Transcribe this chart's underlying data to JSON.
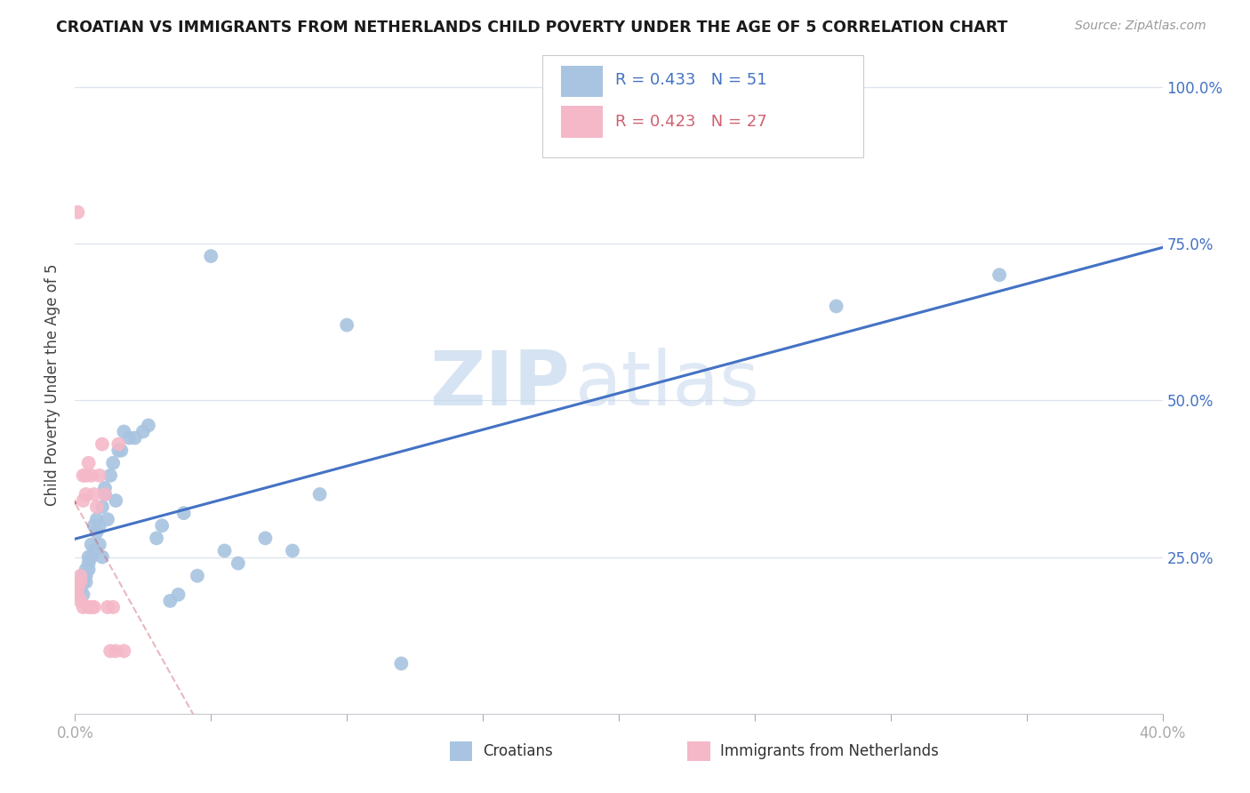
{
  "title": "CROATIAN VS IMMIGRANTS FROM NETHERLANDS CHILD POVERTY UNDER THE AGE OF 5 CORRELATION CHART",
  "source": "Source: ZipAtlas.com",
  "ylabel": "Child Poverty Under the Age of 5",
  "blue_R": 0.433,
  "blue_N": 51,
  "pink_R": 0.423,
  "pink_N": 27,
  "blue_color": "#a8c4e0",
  "blue_line_color": "#4472c4",
  "pink_color": "#f4b8c8",
  "pink_line_color": "#d06070",
  "watermark_zip": "ZIP",
  "watermark_atlas": "atlas",
  "legend_blue_label": "Croatians",
  "legend_pink_label": "Immigrants from Netherlands",
  "background_color": "#ffffff",
  "grid_color": "#dde3ec",
  "xlim": [
    0.0,
    0.4
  ],
  "ylim": [
    0.0,
    1.05
  ],
  "blue_x": [
    0.001,
    0.002,
    0.002,
    0.003,
    0.003,
    0.003,
    0.004,
    0.004,
    0.004,
    0.005,
    0.005,
    0.005,
    0.006,
    0.006,
    0.007,
    0.007,
    0.008,
    0.008,
    0.009,
    0.009,
    0.01,
    0.01,
    0.011,
    0.011,
    0.012,
    0.013,
    0.014,
    0.015,
    0.016,
    0.017,
    0.018,
    0.02,
    0.022,
    0.025,
    0.027,
    0.03,
    0.032,
    0.035,
    0.038,
    0.04,
    0.045,
    0.05,
    0.055,
    0.06,
    0.07,
    0.08,
    0.09,
    0.1,
    0.12,
    0.28,
    0.34
  ],
  "blue_y": [
    0.2,
    0.21,
    0.2,
    0.22,
    0.19,
    0.21,
    0.23,
    0.22,
    0.21,
    0.24,
    0.23,
    0.25,
    0.25,
    0.27,
    0.26,
    0.3,
    0.29,
    0.31,
    0.3,
    0.27,
    0.33,
    0.25,
    0.35,
    0.36,
    0.31,
    0.38,
    0.4,
    0.34,
    0.42,
    0.42,
    0.45,
    0.44,
    0.44,
    0.45,
    0.46,
    0.28,
    0.3,
    0.18,
    0.19,
    0.32,
    0.22,
    0.73,
    0.26,
    0.24,
    0.28,
    0.26,
    0.35,
    0.62,
    0.08,
    0.65,
    0.7
  ],
  "pink_x": [
    0.001,
    0.001,
    0.001,
    0.002,
    0.002,
    0.002,
    0.003,
    0.003,
    0.003,
    0.004,
    0.004,
    0.005,
    0.005,
    0.006,
    0.006,
    0.007,
    0.007,
    0.008,
    0.009,
    0.01,
    0.011,
    0.012,
    0.013,
    0.014,
    0.015,
    0.016,
    0.018
  ],
  "pink_y": [
    0.19,
    0.2,
    0.8,
    0.21,
    0.18,
    0.22,
    0.34,
    0.38,
    0.17,
    0.38,
    0.35,
    0.4,
    0.17,
    0.38,
    0.17,
    0.35,
    0.17,
    0.33,
    0.38,
    0.43,
    0.35,
    0.17,
    0.1,
    0.17,
    0.1,
    0.43,
    0.1
  ]
}
